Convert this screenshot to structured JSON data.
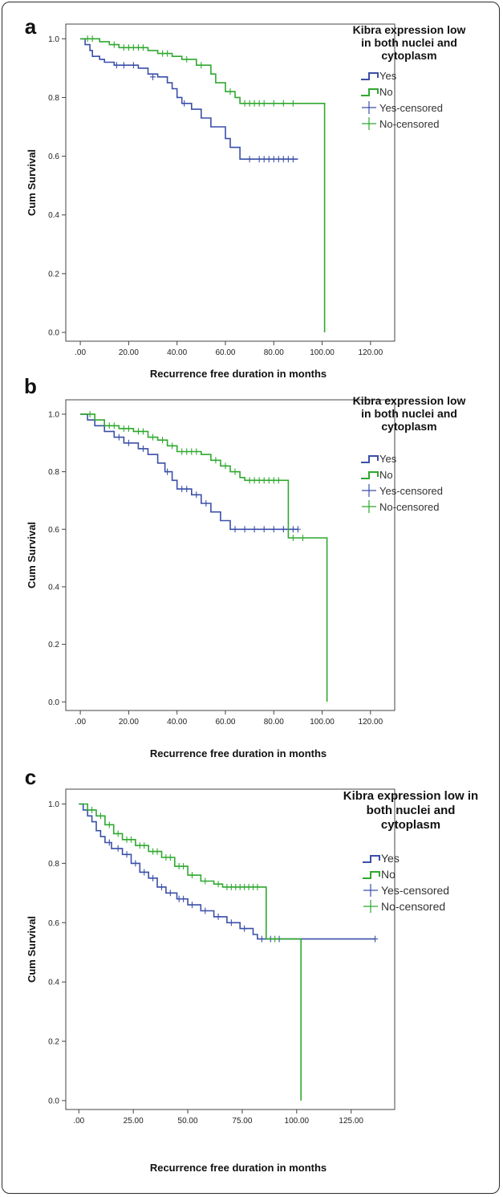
{
  "chart_data": [
    {
      "type": "line",
      "panel_label": "a",
      "xlabel": "Recurrence free duration in months",
      "ylabel": "Cum Survival",
      "xlim": [
        -6,
        130
      ],
      "ylim": [
        -0.03,
        1.05
      ],
      "xticks": [
        0,
        20,
        40,
        60,
        80,
        100,
        120
      ],
      "xtick_labels": [
        ".00",
        "20.00",
        "40.00",
        "60.00",
        "80.00",
        "100.00",
        "120.00"
      ],
      "yticks": [
        0,
        0.2,
        0.4,
        0.6,
        0.8,
        1.0
      ],
      "ytick_labels": [
        "0.0",
        "0.2",
        "0.4",
        "0.6",
        "0.8",
        "1.0"
      ],
      "legend_title": [
        "Kibra expression low",
        "in both nuclei and",
        "cytoplasm"
      ],
      "legend_items": [
        "Yes",
        "No",
        "Yes-censored",
        "No-censored"
      ],
      "legend_position": "top-right",
      "series": [
        {
          "name": "Yes",
          "color": "#3b4fa8",
          "steps": [
            [
              0,
              1.0
            ],
            [
              2,
              0.98
            ],
            [
              4,
              0.96
            ],
            [
              5,
              0.94
            ],
            [
              8,
              0.93
            ],
            [
              10,
              0.92
            ],
            [
              14,
              0.91
            ],
            [
              24,
              0.9
            ],
            [
              28,
              0.88
            ],
            [
              32,
              0.87
            ],
            [
              36,
              0.85
            ],
            [
              38,
              0.83
            ],
            [
              40,
              0.8
            ],
            [
              42,
              0.78
            ],
            [
              46,
              0.76
            ],
            [
              50,
              0.73
            ],
            [
              54,
              0.7
            ],
            [
              60,
              0.66
            ],
            [
              62,
              0.63
            ],
            [
              66,
              0.59
            ],
            [
              90,
              0.59
            ]
          ],
          "censored": [
            [
              15,
              0.91
            ],
            [
              18,
              0.91
            ],
            [
              22,
              0.91
            ],
            [
              30,
              0.87
            ],
            [
              43,
              0.78
            ],
            [
              70,
              0.59
            ],
            [
              74,
              0.59
            ],
            [
              76,
              0.59
            ],
            [
              78,
              0.59
            ],
            [
              80,
              0.59
            ],
            [
              82,
              0.59
            ],
            [
              84,
              0.59
            ],
            [
              86,
              0.59
            ],
            [
              88,
              0.59
            ]
          ]
        },
        {
          "name": "No",
          "color": "#2fa82f",
          "steps": [
            [
              0,
              1.0
            ],
            [
              8,
              0.99
            ],
            [
              12,
              0.98
            ],
            [
              16,
              0.97
            ],
            [
              28,
              0.96
            ],
            [
              32,
              0.95
            ],
            [
              38,
              0.94
            ],
            [
              42,
              0.93
            ],
            [
              48,
              0.91
            ],
            [
              54,
              0.88
            ],
            [
              56,
              0.85
            ],
            [
              60,
              0.82
            ],
            [
              64,
              0.8
            ],
            [
              66,
              0.78
            ],
            [
              101,
              0.78
            ],
            [
              101,
              0.0
            ]
          ],
          "censored": [
            [
              3,
              1.0
            ],
            [
              5,
              1.0
            ],
            [
              14,
              0.98
            ],
            [
              18,
              0.97
            ],
            [
              20,
              0.97
            ],
            [
              22,
              0.97
            ],
            [
              24,
              0.97
            ],
            [
              26,
              0.97
            ],
            [
              34,
              0.95
            ],
            [
              36,
              0.95
            ],
            [
              44,
              0.93
            ],
            [
              50,
              0.91
            ],
            [
              62,
              0.82
            ],
            [
              68,
              0.78
            ],
            [
              70,
              0.78
            ],
            [
              72,
              0.78
            ],
            [
              74,
              0.78
            ],
            [
              76,
              0.78
            ],
            [
              80,
              0.78
            ],
            [
              84,
              0.78
            ],
            [
              88,
              0.78
            ]
          ]
        }
      ]
    },
    {
      "type": "line",
      "panel_label": "b",
      "xlabel": "Recurrence free duration in months",
      "ylabel": "Cum Survival",
      "xlim": [
        -6,
        130
      ],
      "ylim": [
        -0.03,
        1.05
      ],
      "xticks": [
        0,
        20,
        40,
        60,
        80,
        100,
        120
      ],
      "xtick_labels": [
        ".00",
        "20.00",
        "40.00",
        "60.00",
        "80.00",
        "100.00",
        "120.00"
      ],
      "yticks": [
        0,
        0.2,
        0.4,
        0.6,
        0.8,
        1.0
      ],
      "ytick_labels": [
        "0.0",
        "0.2",
        "0.4",
        "0.6",
        "0.8",
        "1.0"
      ],
      "legend_title": [
        "Kibra expression low",
        "in both nuclei and",
        "cytoplasm"
      ],
      "legend_items": [
        "Yes",
        "No",
        "Yes-censored",
        "No-censored"
      ],
      "legend_position": "top-right",
      "series": [
        {
          "name": "Yes",
          "color": "#3b4fa8",
          "steps": [
            [
              0,
              1.0
            ],
            [
              3,
              0.98
            ],
            [
              6,
              0.96
            ],
            [
              10,
              0.94
            ],
            [
              14,
              0.92
            ],
            [
              18,
              0.9
            ],
            [
              24,
              0.88
            ],
            [
              28,
              0.86
            ],
            [
              32,
              0.83
            ],
            [
              35,
              0.8
            ],
            [
              38,
              0.77
            ],
            [
              40,
              0.74
            ],
            [
              46,
              0.72
            ],
            [
              50,
              0.69
            ],
            [
              54,
              0.66
            ],
            [
              58,
              0.63
            ],
            [
              62,
              0.6
            ],
            [
              90,
              0.6
            ]
          ],
          "censored": [
            [
              16,
              0.92
            ],
            [
              20,
              0.9
            ],
            [
              26,
              0.88
            ],
            [
              36,
              0.8
            ],
            [
              42,
              0.74
            ],
            [
              44,
              0.74
            ],
            [
              48,
              0.72
            ],
            [
              52,
              0.69
            ],
            [
              64,
              0.6
            ],
            [
              68,
              0.6
            ],
            [
              72,
              0.6
            ],
            [
              76,
              0.6
            ],
            [
              80,
              0.6
            ],
            [
              84,
              0.6
            ],
            [
              88,
              0.6
            ],
            [
              90,
              0.6
            ]
          ]
        },
        {
          "name": "No",
          "color": "#2fa82f",
          "steps": [
            [
              0,
              1.0
            ],
            [
              6,
              0.98
            ],
            [
              10,
              0.96
            ],
            [
              16,
              0.95
            ],
            [
              22,
              0.94
            ],
            [
              28,
              0.92
            ],
            [
              32,
              0.91
            ],
            [
              36,
              0.89
            ],
            [
              40,
              0.87
            ],
            [
              50,
              0.86
            ],
            [
              54,
              0.84
            ],
            [
              58,
              0.82
            ],
            [
              62,
              0.8
            ],
            [
              66,
              0.78
            ],
            [
              68,
              0.77
            ],
            [
              86,
              0.77
            ],
            [
              86,
              0.57
            ],
            [
              102,
              0.57
            ],
            [
              102,
              0.0
            ]
          ],
          "censored": [
            [
              4,
              1.0
            ],
            [
              12,
              0.96
            ],
            [
              14,
              0.96
            ],
            [
              18,
              0.95
            ],
            [
              20,
              0.95
            ],
            [
              24,
              0.94
            ],
            [
              26,
              0.94
            ],
            [
              30,
              0.92
            ],
            [
              34,
              0.91
            ],
            [
              38,
              0.89
            ],
            [
              42,
              0.87
            ],
            [
              44,
              0.87
            ],
            [
              46,
              0.87
            ],
            [
              48,
              0.87
            ],
            [
              56,
              0.84
            ],
            [
              60,
              0.82
            ],
            [
              64,
              0.8
            ],
            [
              70,
              0.77
            ],
            [
              72,
              0.77
            ],
            [
              74,
              0.77
            ],
            [
              76,
              0.77
            ],
            [
              78,
              0.77
            ],
            [
              80,
              0.77
            ],
            [
              82,
              0.77
            ],
            [
              88,
              0.57
            ],
            [
              92,
              0.57
            ]
          ]
        }
      ]
    },
    {
      "type": "line",
      "panel_label": "c",
      "xlabel": "Recurrence free duration in months",
      "ylabel": "Cum Survival",
      "xlim": [
        -6,
        145
      ],
      "ylim": [
        -0.03,
        1.05
      ],
      "xticks": [
        0,
        25,
        50,
        75,
        100,
        125
      ],
      "xtick_labels": [
        ".00",
        "25.00",
        "50.00",
        "75.00",
        "100.00",
        "125.00"
      ],
      "yticks": [
        0,
        0.2,
        0.4,
        0.6,
        0.8,
        1.0
      ],
      "ytick_labels": [
        "0.0",
        "0.2",
        "0.4",
        "0.6",
        "0.8",
        "1.0"
      ],
      "legend_title": [
        "Kibra expression low in",
        "both nuclei and",
        "cytoplasm"
      ],
      "legend_items": [
        "Yes",
        "No",
        "Yes-censored",
        "No-censored"
      ],
      "legend_position": "top-right",
      "series": [
        {
          "name": "Yes",
          "color": "#3b4fa8",
          "steps": [
            [
              0,
              1.0
            ],
            [
              2,
              0.98
            ],
            [
              4,
              0.96
            ],
            [
              6,
              0.94
            ],
            [
              8,
              0.91
            ],
            [
              10,
              0.89
            ],
            [
              12,
              0.87
            ],
            [
              15,
              0.85
            ],
            [
              20,
              0.83
            ],
            [
              24,
              0.8
            ],
            [
              28,
              0.77
            ],
            [
              32,
              0.75
            ],
            [
              36,
              0.72
            ],
            [
              40,
              0.7
            ],
            [
              45,
              0.68
            ],
            [
              50,
              0.66
            ],
            [
              56,
              0.64
            ],
            [
              62,
              0.62
            ],
            [
              68,
              0.6
            ],
            [
              74,
              0.58
            ],
            [
              80,
              0.56
            ],
            [
              82,
              0.545
            ],
            [
              136,
              0.545
            ]
          ],
          "censored": [
            [
              14,
              0.87
            ],
            [
              18,
              0.85
            ],
            [
              22,
              0.83
            ],
            [
              26,
              0.8
            ],
            [
              30,
              0.77
            ],
            [
              34,
              0.75
            ],
            [
              38,
              0.72
            ],
            [
              42,
              0.7
            ],
            [
              46,
              0.68
            ],
            [
              48,
              0.68
            ],
            [
              52,
              0.66
            ],
            [
              58,
              0.64
            ],
            [
              64,
              0.62
            ],
            [
              70,
              0.6
            ],
            [
              76,
              0.58
            ],
            [
              84,
              0.545
            ],
            [
              88,
              0.545
            ],
            [
              92,
              0.545
            ],
            [
              136,
              0.545
            ]
          ]
        },
        {
          "name": "No",
          "color": "#2fa82f",
          "steps": [
            [
              0,
              1.0
            ],
            [
              4,
              0.98
            ],
            [
              8,
              0.96
            ],
            [
              12,
              0.93
            ],
            [
              16,
              0.9
            ],
            [
              20,
              0.88
            ],
            [
              26,
              0.86
            ],
            [
              32,
              0.84
            ],
            [
              38,
              0.82
            ],
            [
              44,
              0.79
            ],
            [
              50,
              0.76
            ],
            [
              56,
              0.74
            ],
            [
              62,
              0.73
            ],
            [
              66,
              0.72
            ],
            [
              86,
              0.72
            ],
            [
              86,
              0.545
            ],
            [
              102,
              0.545
            ],
            [
              102,
              0.0
            ]
          ],
          "censored": [
            [
              6,
              0.98
            ],
            [
              10,
              0.96
            ],
            [
              14,
              0.93
            ],
            [
              18,
              0.9
            ],
            [
              22,
              0.88
            ],
            [
              24,
              0.88
            ],
            [
              28,
              0.86
            ],
            [
              30,
              0.86
            ],
            [
              34,
              0.84
            ],
            [
              36,
              0.84
            ],
            [
              40,
              0.82
            ],
            [
              42,
              0.82
            ],
            [
              46,
              0.79
            ],
            [
              48,
              0.79
            ],
            [
              52,
              0.76
            ],
            [
              58,
              0.74
            ],
            [
              64,
              0.73
            ],
            [
              68,
              0.72
            ],
            [
              70,
              0.72
            ],
            [
              72,
              0.72
            ],
            [
              74,
              0.72
            ],
            [
              76,
              0.72
            ],
            [
              78,
              0.72
            ],
            [
              80,
              0.72
            ],
            [
              82,
              0.72
            ],
            [
              90,
              0.545
            ]
          ]
        }
      ]
    }
  ]
}
